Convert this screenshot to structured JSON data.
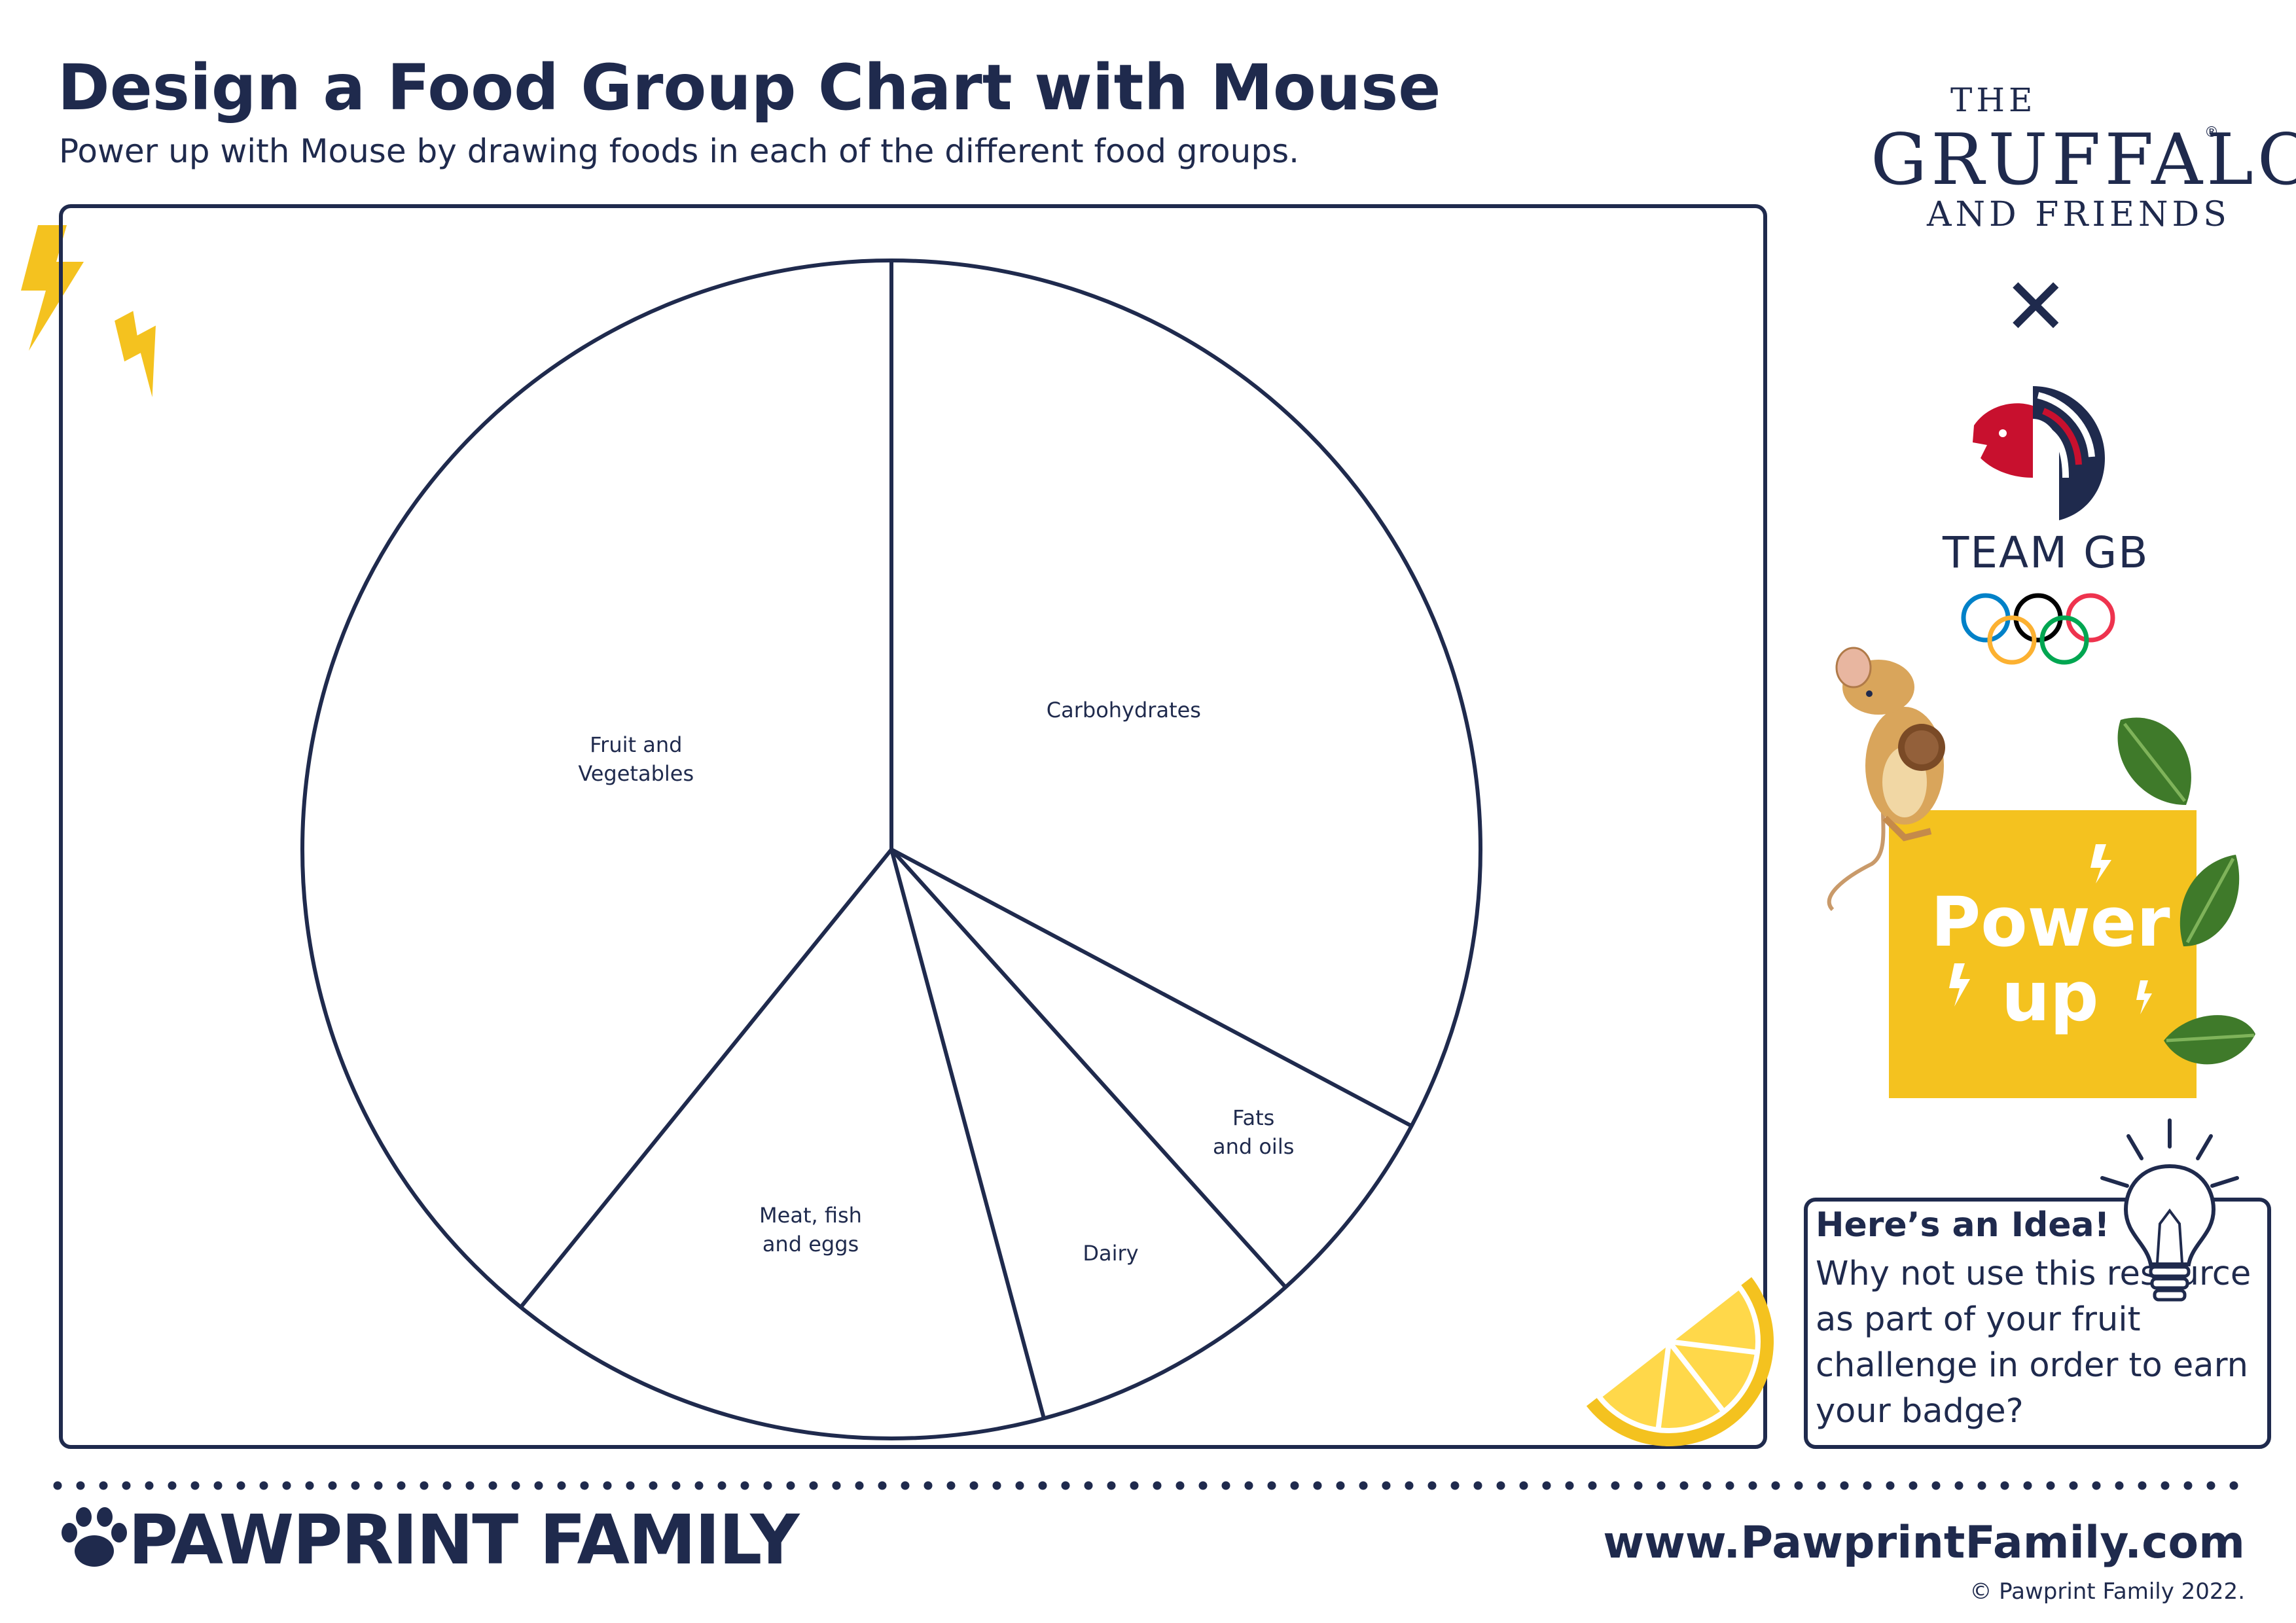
{
  "header": {
    "title": "Design a Food Group Chart with Mouse",
    "subtitle": "Power up with Mouse by drawing foods in each of the different food groups."
  },
  "chart_data": {
    "type": "pie",
    "title": "",
    "slices": [
      {
        "label_lines": [
          "Carbohydrates"
        ],
        "angle_start_deg": 0,
        "angle_end_deg": 118
      },
      {
        "label_lines": [
          "Fats",
          "and oils"
        ],
        "angle_start_deg": 118,
        "angle_end_deg": 138
      },
      {
        "label_lines": [
          "Dairy"
        ],
        "angle_start_deg": 138,
        "angle_end_deg": 165
      },
      {
        "label_lines": [
          "Meat, fish",
          "and eggs"
        ],
        "angle_start_deg": 165,
        "angle_end_deg": 219
      },
      {
        "label_lines": [
          "Fruit and",
          "Vegetables"
        ],
        "angle_start_deg": 219,
        "angle_end_deg": 360
      }
    ],
    "outline_color": "#1f2a4d",
    "fill": "#ffffff"
  },
  "branding": {
    "the": "THE",
    "gruffalo": "GRUFFALO",
    "registered": "®",
    "and_friends": "AND FRIENDS",
    "cross": "✕",
    "team_gb": "TEAM GB"
  },
  "power_up": {
    "line1": "Power",
    "line2": "up",
    "color": "#f4c21f"
  },
  "idea": {
    "heading": "Here’s an Idea!",
    "body": "Why not use this resource as part of your fruit challenge in order to earn your badge?"
  },
  "footer": {
    "brand": "PAWPRINT FAMILY",
    "url": "www.PawprintFamily.com",
    "copyright": "© Pawprint Family 2022."
  },
  "colors": {
    "navy": "#1f2a4d",
    "yellow": "#f4c21f",
    "leaf_green": "#3f7a2a"
  }
}
